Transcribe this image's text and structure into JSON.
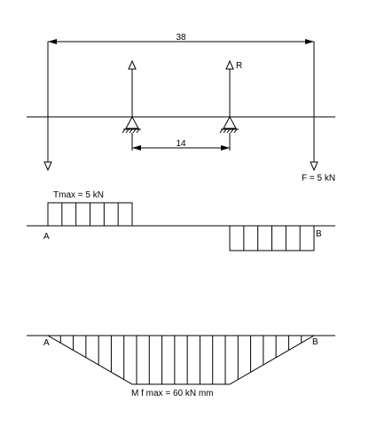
{
  "beam": {
    "overall_length_label": "38",
    "support_spacing_label": "14",
    "reaction_label": "R",
    "force_label": "F = 5 kN"
  },
  "shear_diagram": {
    "max_label": "Tmax = 5 kN",
    "end_a_label": "A",
    "end_b_label": "B",
    "stripe_count": 6
  },
  "moment_diagram": {
    "max_label": "M f max = 60 kN mm",
    "end_a_label": "A",
    "end_b_label": "B",
    "stripe_count": 21
  },
  "colors": {
    "ink": "#000000",
    "background": "#ffffff"
  }
}
